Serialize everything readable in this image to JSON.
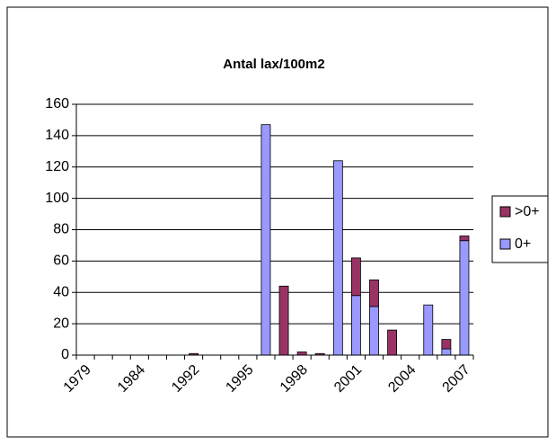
{
  "chart_data": {
    "type": "stacked_bar",
    "title": "Antal lax/100m2",
    "categories": [
      "1979",
      null,
      null,
      "1984",
      null,
      null,
      "1992",
      null,
      null,
      "1995",
      null,
      null,
      "1998",
      null,
      null,
      "2001",
      null,
      null,
      "2004",
      null,
      null,
      "2007"
    ],
    "series": [
      {
        "name": "0+",
        "color": "#9999ff",
        "values": [
          0,
          0,
          0,
          0,
          0,
          0,
          0,
          0,
          0,
          0,
          147,
          0,
          0,
          0,
          124,
          38,
          31,
          0,
          0,
          32,
          4,
          73
        ]
      },
      {
        "name": ">0+",
        "color": "#993366",
        "values": [
          0,
          0,
          0,
          0,
          0,
          0,
          1,
          0,
          0,
          0,
          0,
          44,
          2,
          1,
          0,
          24,
          17,
          16,
          0,
          0,
          6,
          3
        ]
      }
    ],
    "ylim": [
      0,
      160
    ],
    "yticks": [
      0,
      20,
      40,
      60,
      80,
      100,
      120,
      140,
      160
    ],
    "grid": true,
    "legend": "right"
  }
}
